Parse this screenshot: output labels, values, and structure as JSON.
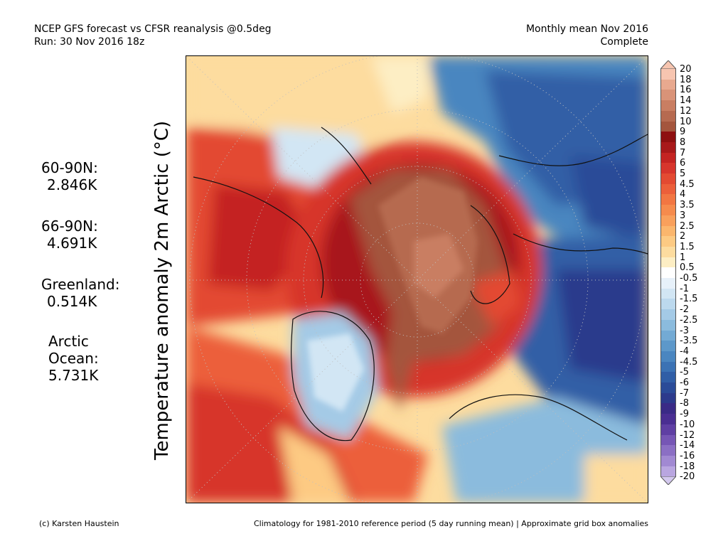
{
  "header": {
    "left_line1": "NCEP GFS forecast vs CFSR reanalysis @0.5deg",
    "left_line2": "Run: 30 Nov 2016 18z",
    "right_line1": "Monthly mean Nov 2016",
    "right_line2": "Complete"
  },
  "stats": [
    {
      "label": "60-90N:",
      "value": "2.846K"
    },
    {
      "label": "66-90N:",
      "value": "4.691K"
    },
    {
      "label": "Greenland:",
      "value": "0.514K"
    },
    {
      "label": "Arctic Ocean:",
      "value": "5.731K"
    }
  ],
  "axis_label": "Temperature anomaly 2m Arctic (°C)",
  "colorbar": {
    "unit": "°C",
    "levels": [
      {
        "label": "20",
        "color": "#f7c5b0"
      },
      {
        "label": "18",
        "color": "#e8a98f"
      },
      {
        "label": "16",
        "color": "#d99378"
      },
      {
        "label": "14",
        "color": "#c97e62"
      },
      {
        "label": "12",
        "color": "#b66a50"
      },
      {
        "label": "10",
        "color": "#a4553d"
      },
      {
        "label": "9",
        "color": "#8e1010"
      },
      {
        "label": "8",
        "color": "#a8191a"
      },
      {
        "label": "7",
        "color": "#c42422"
      },
      {
        "label": "6",
        "color": "#d7352c"
      },
      {
        "label": "5",
        "color": "#e34a32"
      },
      {
        "label": "4.5",
        "color": "#ec5f3a"
      },
      {
        "label": "4",
        "color": "#f27642"
      },
      {
        "label": "3.5",
        "color": "#f68b4d"
      },
      {
        "label": "3",
        "color": "#f9a05c"
      },
      {
        "label": "2.5",
        "color": "#fbb66d"
      },
      {
        "label": "2",
        "color": "#fdca83"
      },
      {
        "label": "1.5",
        "color": "#fddc9f"
      },
      {
        "label": "1",
        "color": "#fdeec4"
      },
      {
        "label": "0.5",
        "color": "#ffffff"
      },
      {
        "label": "-0.5",
        "color": "#e7f1fa"
      },
      {
        "label": "-1",
        "color": "#d2e6f4"
      },
      {
        "label": "-1.5",
        "color": "#bcd9ee"
      },
      {
        "label": "-2",
        "color": "#a4cae6"
      },
      {
        "label": "-2.5",
        "color": "#8bbbdd"
      },
      {
        "label": "-3",
        "color": "#73aad4"
      },
      {
        "label": "-3.5",
        "color": "#5d98ca"
      },
      {
        "label": "-4",
        "color": "#4a86c0"
      },
      {
        "label": "-4.5",
        "color": "#3b72b4"
      },
      {
        "label": "-5",
        "color": "#305ea6"
      },
      {
        "label": "-6",
        "color": "#2a4b98"
      },
      {
        "label": "-7",
        "color": "#2c3a8c"
      },
      {
        "label": "-8",
        "color": "#3a2a86"
      },
      {
        "label": "-9",
        "color": "#4a2e92"
      },
      {
        "label": "-10",
        "color": "#5f3fa3"
      },
      {
        "label": "-12",
        "color": "#7656b5"
      },
      {
        "label": "-14",
        "color": "#8b6fc4"
      },
      {
        "label": "-16",
        "color": "#a189d2"
      },
      {
        "label": "-18",
        "color": "#b9a6e0"
      },
      {
        "label": "-20",
        "color": "#d3c8ee"
      }
    ]
  },
  "footer": {
    "left": "(c) Karsten Haustein",
    "right": "Climatology for 1981-2010 reference period (5 day running mean) | Approximate grid box anomalies"
  }
}
